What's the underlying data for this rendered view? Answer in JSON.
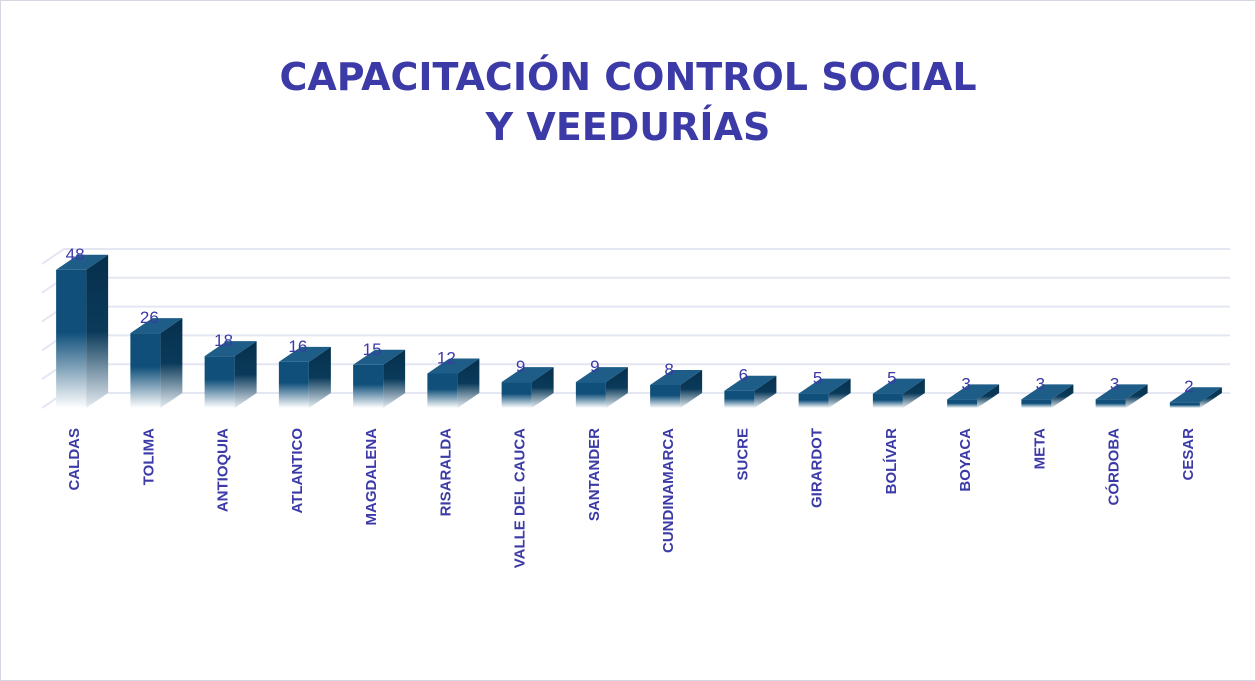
{
  "chart_data": {
    "type": "bar3d",
    "title": [
      "CAPACITACIÓN CONTROL SOCIAL",
      "Y VEEDURÍAS"
    ],
    "categories": [
      "CALDAS",
      "TOLIMA",
      "ANTIOQUIA",
      "ATLANTICO",
      "MAGDALENA",
      "RISARALDA",
      "VALLE DEL CAUCA",
      "SANTANDER",
      "CUNDINAMARCA",
      "SUCRE",
      "GIRARDOT",
      "BOLÍVAR",
      "BOYACA",
      "META",
      "CÓRDOBA",
      "CESAR"
    ],
    "values": [
      48,
      26,
      18,
      16,
      15,
      12,
      9,
      9,
      8,
      6,
      5,
      5,
      3,
      3,
      3,
      2
    ],
    "color": "#0f4f7a",
    "ylim": [
      0,
      50
    ],
    "yticks": [
      0,
      10,
      20,
      30,
      40,
      50
    ],
    "grid": true
  }
}
